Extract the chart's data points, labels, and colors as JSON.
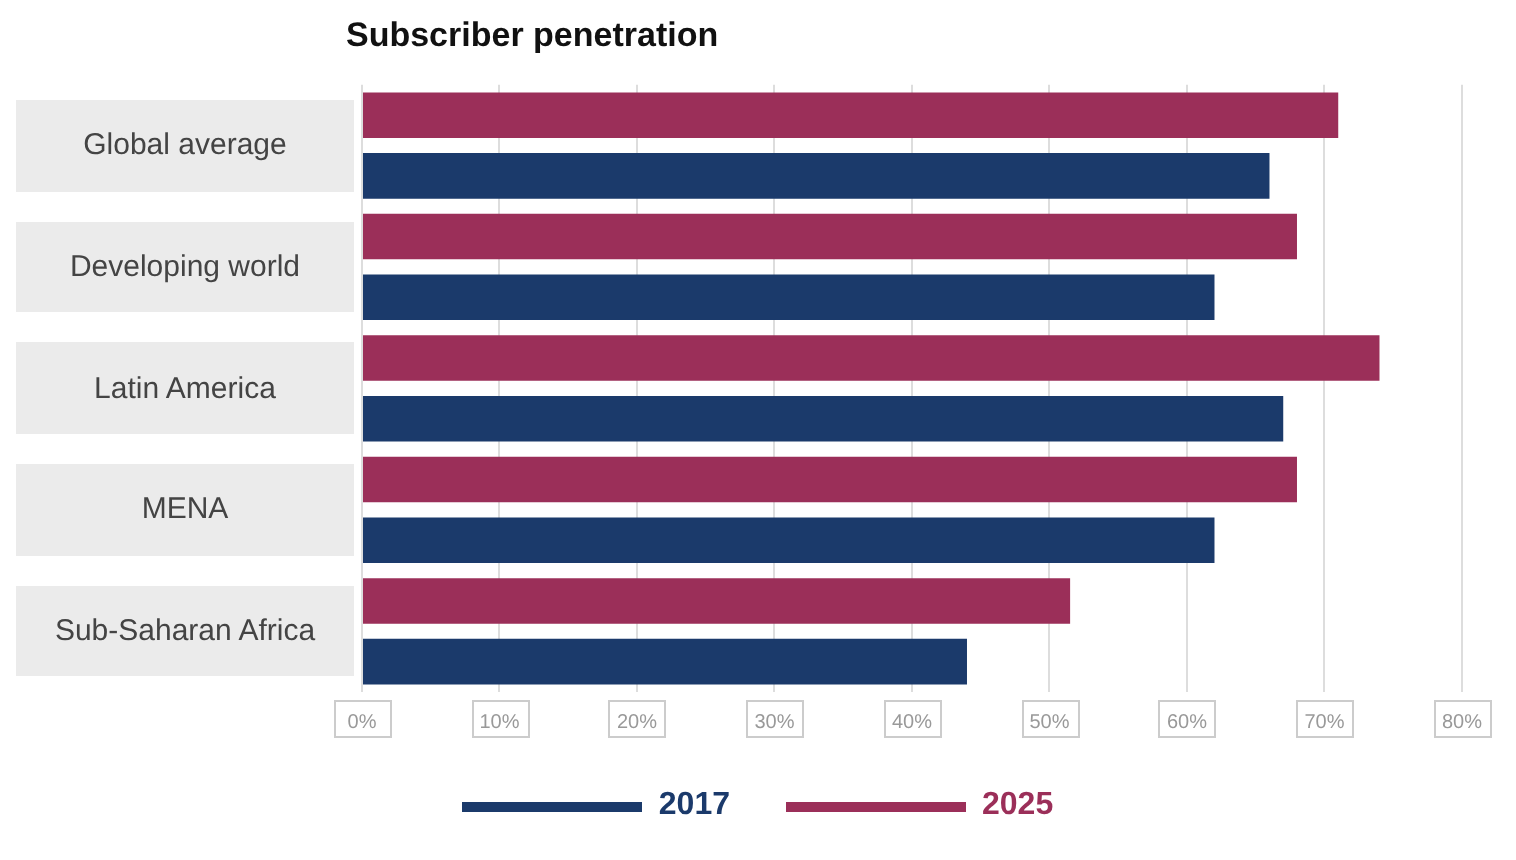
{
  "chart_data": {
    "type": "bar",
    "orientation": "horizontal",
    "title": "Subscriber penetration",
    "categories": [
      "Global average",
      "Developing world",
      "Latin America",
      "MENA",
      "Sub-Saharan Africa"
    ],
    "series": [
      {
        "name": "2017",
        "color": "#1b3a6b",
        "values": [
          66,
          62,
          67,
          62,
          44
        ]
      },
      {
        "name": "2025",
        "color": "#9b2f59",
        "values": [
          71,
          68,
          74,
          68,
          51.5
        ]
      }
    ],
    "xlim": [
      0,
      80
    ],
    "xticks": [
      {
        "value": 0,
        "label": "0%"
      },
      {
        "value": 10,
        "label": "10%"
      },
      {
        "value": 20,
        "label": "20%"
      },
      {
        "value": 30,
        "label": "30%"
      },
      {
        "value": 40,
        "label": "40%"
      },
      {
        "value": 50,
        "label": "50%"
      },
      {
        "value": 60,
        "label": "60%"
      },
      {
        "value": 70,
        "label": "70%"
      },
      {
        "value": 80,
        "label": "80%"
      }
    ],
    "grid": "x",
    "legend": "bottom"
  }
}
